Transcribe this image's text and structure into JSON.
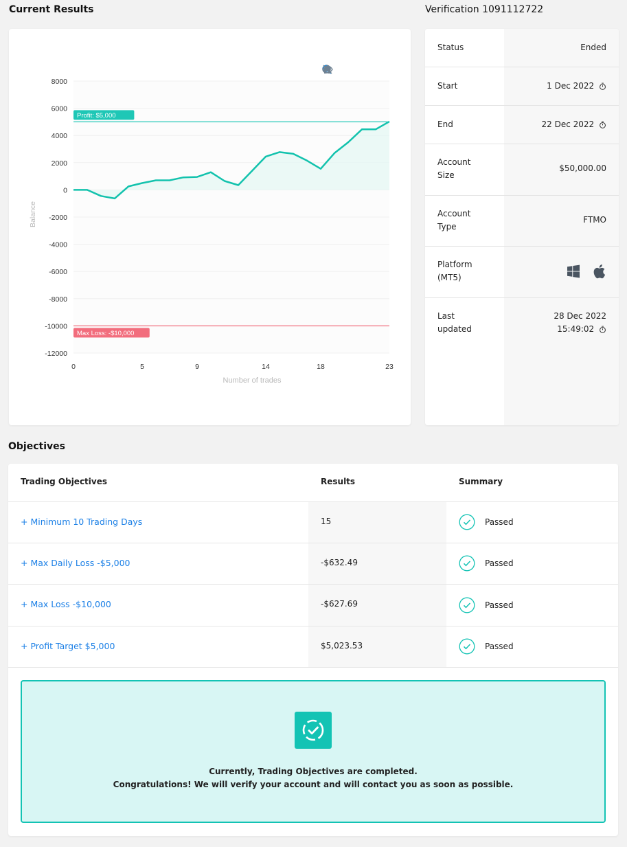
{
  "headers": {
    "current_results": "Current Results",
    "verification": "Verification 1091112722",
    "objectives": "Objectives"
  },
  "chart_data": {
    "type": "area",
    "xlabel": "Number of trades",
    "ylabel": "Balance",
    "ylim": [
      -12000,
      8000
    ],
    "xlim": [
      0,
      23
    ],
    "yticks": [
      "8000",
      "6000",
      "4000",
      "2000",
      "0",
      "-2000",
      "-4000",
      "-6000",
      "-8000",
      "-10000",
      "-12000"
    ],
    "xticks": [
      "0",
      "5",
      "9",
      "14",
      "18",
      "23"
    ],
    "grid": true,
    "series": [
      {
        "x": [
          0,
          1,
          2,
          3,
          4,
          5,
          6,
          7,
          8,
          9,
          10,
          11,
          12,
          13,
          14,
          15,
          16,
          17,
          18,
          19,
          20,
          21,
          22,
          23
        ],
        "values": [
          0,
          0,
          -450,
          -630,
          250,
          500,
          700,
          700,
          920,
          950,
          1300,
          650,
          350,
          1400,
          2450,
          2780,
          2650,
          2150,
          1550,
          2700,
          3500,
          4450,
          4450,
          5024
        ]
      }
    ],
    "annotations": [
      {
        "label": "Profit: $5,000",
        "y": 5000,
        "color": "#1fc7b6"
      },
      {
        "label": "Max Loss: -$10,000",
        "y": -10000,
        "color": "#f26d7d"
      }
    ],
    "line_color": "#12c2ad",
    "fill_color": "#e6f7f4"
  },
  "toolbar": {
    "zoom_in": "zoom-in-icon",
    "zoom_out": "zoom-out-icon",
    "zoom_select": "magnifier-icon",
    "reset": "home-icon",
    "pan": "eye-slash-icon"
  },
  "info": {
    "status_label": "Status",
    "status_value": "Ended",
    "start_label": "Start",
    "start_value": "1 Dec 2022",
    "end_label": "End",
    "end_value": "22 Dec 2022",
    "account_size_label": "Account Size",
    "account_size_value": "$50,000.00",
    "account_type_label": "Account Type",
    "account_type_value": "FTMO",
    "platform_label": "Platform (MT5)",
    "last_updated_label": "Last updated",
    "last_updated_date": "28 Dec 2022",
    "last_updated_time": "15:49:02"
  },
  "objectives": {
    "col_objectives": "Trading Objectives",
    "col_results": "Results",
    "col_summary": "Summary",
    "rows": [
      {
        "name": "+ Minimum 10 Trading Days",
        "result": "15",
        "summary": "Passed"
      },
      {
        "name": "+ Max Daily Loss -$5,000",
        "result": "-$632.49",
        "summary": "Passed"
      },
      {
        "name": "+ Max Loss -$10,000",
        "result": "-$627.69",
        "summary": "Passed"
      },
      {
        "name": "+ Profit Target $5,000",
        "result": "$5,023.53",
        "summary": "Passed"
      }
    ],
    "success_line1": "Currently, Trading Objectives are completed.",
    "success_line2": "Congratulations! We will verify your account and will contact you as soon as possible."
  },
  "colors": {
    "accent": "#13c3b4",
    "link": "#1a7fe6",
    "loss": "#f26d7d"
  }
}
